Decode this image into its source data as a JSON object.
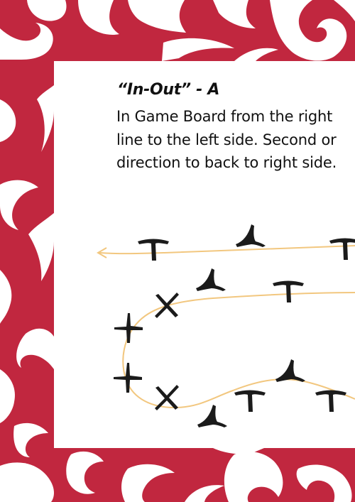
{
  "colors": {
    "border": "#c1273f",
    "path": "#f2c77f",
    "piece": "#1b1b1b"
  },
  "icons": {
    "border": "maori-koru-pattern",
    "piece": "stick-figure-piece",
    "direction": "arrow-left-icon"
  },
  "title": "“In-Out” - A",
  "description": {
    "line1": "In Game Board from the right",
    "line2": "line to the left side. Second or",
    "line3": "direction to back to right side."
  }
}
